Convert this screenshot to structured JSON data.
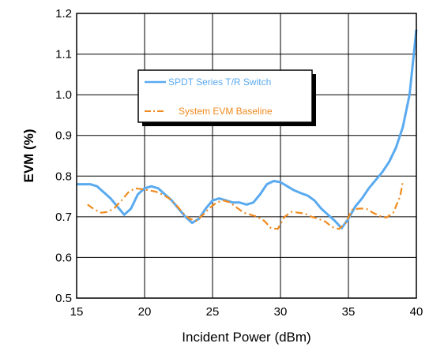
{
  "colors": {
    "switch_series": "#5aaaf0",
    "baseline_series": "#f08a1e",
    "grid": "#000000",
    "background": "#ffffff"
  },
  "chart_data": {
    "type": "line",
    "title": "",
    "xlabel": "Incident Power (dBm)",
    "ylabel": "EVM (%)",
    "xlim": [
      15,
      40
    ],
    "ylim": [
      0.5,
      1.2
    ],
    "xticks": [
      15,
      20,
      25,
      30,
      35,
      40
    ],
    "yticks": [
      0.5,
      0.6,
      0.7,
      0.8,
      0.9,
      1.0,
      1.1,
      1.2
    ],
    "xtick_labels": [
      "15",
      "20",
      "25",
      "30",
      "35",
      "40"
    ],
    "ytick_labels": [
      "0.5",
      "0.6",
      "0.7",
      "0.8",
      "0.9",
      "1.0",
      "1.1",
      "1.2"
    ],
    "grid": true,
    "legend_position": "upper-left-center",
    "series": [
      {
        "name": "SPDT Series T/R Switch",
        "style": "solid",
        "x": [
          15,
          16,
          16.5,
          17,
          17.5,
          18,
          18.5,
          19,
          19.5,
          20,
          20.5,
          21,
          21.5,
          22,
          22.5,
          23,
          23.5,
          24,
          24.5,
          25,
          25.5,
          26,
          26.5,
          27,
          27.5,
          28,
          28.5,
          29,
          29.5,
          30,
          30.5,
          31,
          31.5,
          32,
          32.5,
          33,
          33.5,
          34,
          34.5,
          35,
          35.5,
          36,
          36.5,
          37,
          37.5,
          38,
          38.5,
          39,
          39.5,
          40
        ],
        "y": [
          0.78,
          0.78,
          0.775,
          0.76,
          0.745,
          0.725,
          0.705,
          0.72,
          0.755,
          0.77,
          0.775,
          0.77,
          0.755,
          0.74,
          0.72,
          0.7,
          0.685,
          0.695,
          0.72,
          0.74,
          0.745,
          0.74,
          0.735,
          0.735,
          0.73,
          0.735,
          0.755,
          0.78,
          0.788,
          0.785,
          0.775,
          0.765,
          0.758,
          0.752,
          0.74,
          0.72,
          0.705,
          0.69,
          0.672,
          0.695,
          0.725,
          0.745,
          0.77,
          0.79,
          0.81,
          0.835,
          0.87,
          0.92,
          1.0,
          1.16
        ]
      },
      {
        "name": "System EVM Baseline",
        "style": "dash-dot",
        "x": [
          15.8,
          16.3,
          16.8,
          17.3,
          17.8,
          18.3,
          18.8,
          19.3,
          19.8,
          20.3,
          20.8,
          21.3,
          21.8,
          22.3,
          22.8,
          23.3,
          23.8,
          24.3,
          24.8,
          25.3,
          25.8,
          26.3,
          26.8,
          27.3,
          27.8,
          28.3,
          28.8,
          29.3,
          29.8,
          30.3,
          30.8,
          31.3,
          31.8,
          32.3,
          32.8,
          33.3,
          33.8,
          34.3,
          34.8,
          35.3,
          35.8,
          36.3,
          36.8,
          37.3,
          37.8,
          38.3,
          38.8,
          39.0
        ],
        "y": [
          0.73,
          0.718,
          0.71,
          0.712,
          0.722,
          0.74,
          0.76,
          0.77,
          0.768,
          0.765,
          0.762,
          0.755,
          0.745,
          0.73,
          0.71,
          0.695,
          0.69,
          0.705,
          0.722,
          0.735,
          0.74,
          0.735,
          0.722,
          0.71,
          0.705,
          0.7,
          0.69,
          0.672,
          0.67,
          0.7,
          0.712,
          0.71,
          0.708,
          0.7,
          0.695,
          0.688,
          0.675,
          0.67,
          0.685,
          0.718,
          0.72,
          0.72,
          0.71,
          0.702,
          0.698,
          0.71,
          0.75,
          0.785
        ]
      }
    ]
  }
}
